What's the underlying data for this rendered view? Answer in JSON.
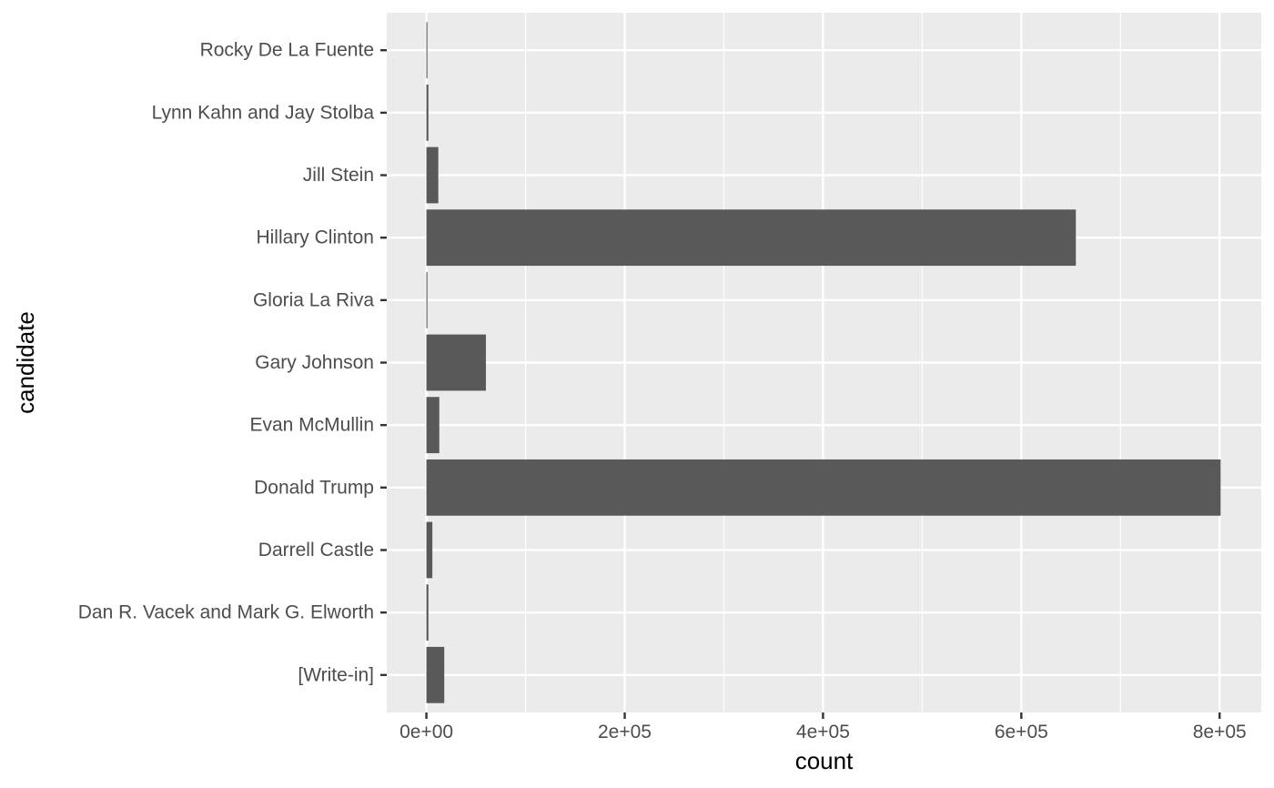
{
  "chart_data": {
    "type": "bar",
    "orientation": "horizontal",
    "xlabel": "count",
    "ylabel": "candidate",
    "categories": [
      "[Write-in]",
      "Dan R. Vacek and Mark G. Elworth",
      "Darrell Castle",
      "Donald Trump",
      "Evan McMullin",
      "Gary Johnson",
      "Gloria La Riva",
      "Hillary Clinton",
      "Jill Stein",
      "Lynn Kahn and Jay Stolba",
      "Rocky De La Fuente"
    ],
    "values": [
      18000,
      2000,
      6000,
      801000,
      13000,
      60000,
      1000,
      655000,
      12000,
      2000,
      1000
    ],
    "xlim": [
      -40000,
      842000
    ],
    "x_ticks": [
      0,
      200000,
      400000,
      600000,
      800000
    ],
    "x_tick_labels": [
      "0e+00",
      "2e+05",
      "4e+05",
      "6e+05",
      "8e+05"
    ],
    "grid": true,
    "bar_color": "#595959",
    "panel_color": "#ebebeb",
    "grid_color": "#ffffff"
  }
}
